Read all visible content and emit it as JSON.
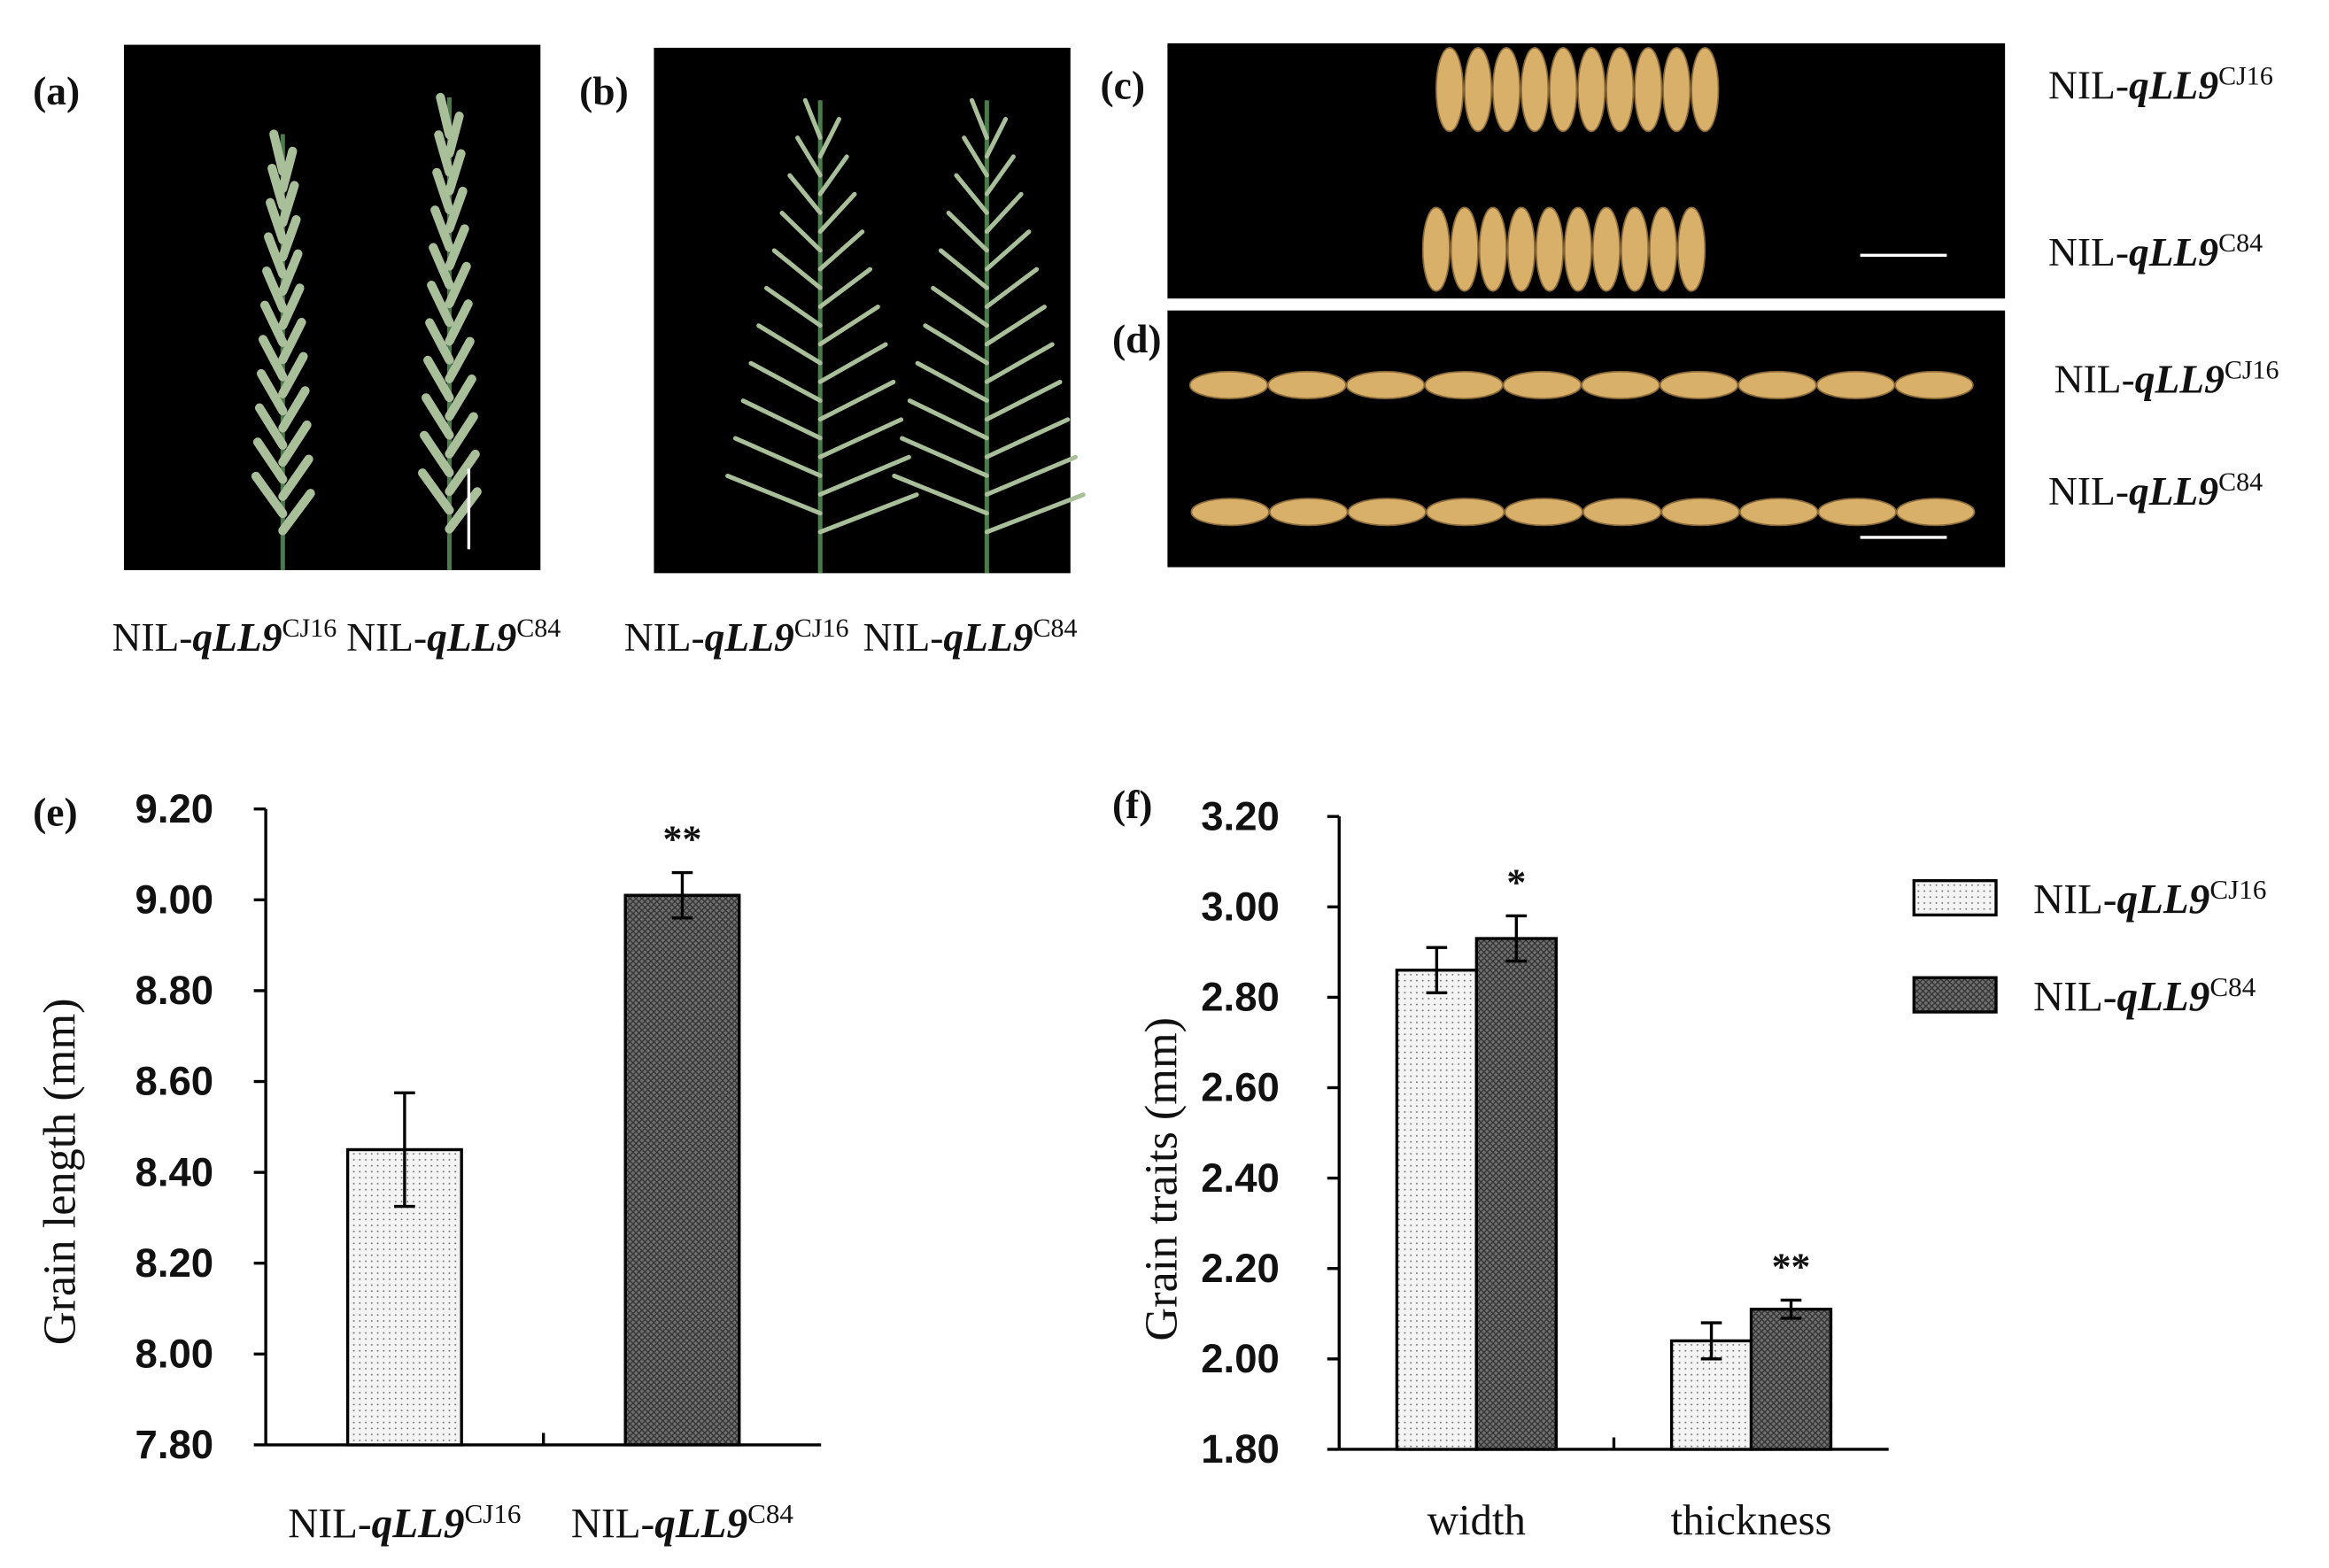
{
  "figure": {
    "photos": [
      {
        "label": "(a)",
        "captions": [
          {
            "prefix": "NIL-",
            "gene": "qLL9",
            "allele": "CJ16"
          },
          {
            "prefix": "NIL-",
            "gene": "qLL9",
            "allele": "C84"
          }
        ]
      },
      {
        "label": "(b)",
        "captions": [
          {
            "prefix": "NIL-",
            "gene": "qLL9",
            "allele": "CJ16"
          },
          {
            "prefix": "NIL-",
            "gene": "qLL9",
            "allele": "C84"
          }
        ]
      },
      {
        "label": "(c)",
        "captions": [
          {
            "prefix": "NIL-",
            "gene": "qLL9",
            "allele": "CJ16"
          },
          {
            "prefix": "NIL-",
            "gene": "qLL9",
            "allele": "C84"
          }
        ]
      },
      {
        "label": "(d)",
        "captions": [
          {
            "prefix": "NIL-",
            "gene": "qLL9",
            "allele": "CJ16"
          },
          {
            "prefix": "NIL-",
            "gene": "qLL9",
            "allele": "C84"
          }
        ]
      }
    ]
  },
  "chart_data": [
    {
      "type": "bar",
      "panel_label": "(e)",
      "y_label": "Grain length (mm)",
      "categories": [
        {
          "prefix": "NIL-",
          "gene": "qLL9",
          "allele": "CJ16"
        },
        {
          "prefix": "NIL-",
          "gene": "qLL9",
          "allele": "C84"
        }
      ],
      "values": [
        8.45,
        9.01
      ],
      "errors": [
        0.125,
        0.05
      ],
      "annotations": [
        null,
        "**"
      ],
      "colors": [
        "#f4f4f4",
        "#707070"
      ],
      "patterns": [
        "dots",
        "crosshatch"
      ],
      "ylim": [
        7.8,
        9.2
      ],
      "yticks": [
        {
          "value": 7.8,
          "label": "7.80"
        },
        {
          "value": 8,
          "label": "8.00"
        },
        {
          "value": 8.2,
          "label": "8.20"
        },
        {
          "value": 8.4,
          "label": "8.40"
        },
        {
          "value": 8.6,
          "label": "8.60"
        },
        {
          "value": 8.8,
          "label": "8.80"
        },
        {
          "value": 9,
          "label": "9.00"
        },
        {
          "value": 9.2,
          "label": "9.20"
        }
      ]
    },
    {
      "type": "grouped_bar",
      "panel_label": "(f)",
      "y_label": "Grain traits (mm)",
      "categories": [
        "width",
        "thickness"
      ],
      "series": [
        {
          "name": {
            "prefix": "NIL-",
            "gene": "qLL9",
            "allele": "CJ16"
          },
          "color": "#f4f4f4",
          "pattern": "dots",
          "values": [
            2.86,
            2.04
          ],
          "errors": [
            0.05,
            0.04
          ]
        },
        {
          "name": {
            "prefix": "NIL-",
            "gene": "qLL9",
            "allele": "C84"
          },
          "color": "#707070",
          "pattern": "crosshatch",
          "values": [
            2.93,
            2.11
          ],
          "errors": [
            0.05,
            0.02
          ],
          "annotations": [
            "*",
            "**"
          ]
        }
      ],
      "ylim": [
        1.8,
        3.2
      ],
      "yticks": [
        {
          "value": 1.8,
          "label": "1.80"
        },
        {
          "value": 2,
          "label": "2.00"
        },
        {
          "value": 2.2,
          "label": "2.20"
        },
        {
          "value": 2.4,
          "label": "2.40"
        },
        {
          "value": 2.6,
          "label": "2.60"
        },
        {
          "value": 2.8,
          "label": "2.80"
        },
        {
          "value": 3,
          "label": "3.00"
        },
        {
          "value": 3.2,
          "label": "3.20"
        }
      ],
      "legend": "right"
    }
  ]
}
